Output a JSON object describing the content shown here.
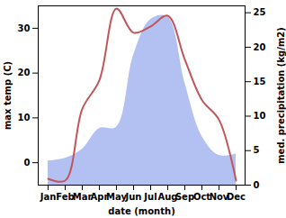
{
  "chart_data": {
    "type": "line",
    "xlabel": "date (month)",
    "ylabel": "max temp (C)",
    "y2label": "med. precipitation (kg/m2)",
    "categories": [
      "Jan",
      "Feb",
      "Mar",
      "Apr",
      "May",
      "Jun",
      "Jul",
      "Aug",
      "Sep",
      "Oct",
      "Nov",
      "Dec"
    ],
    "series": [
      {
        "type": "area",
        "axis": "y2",
        "color": "#b3c0f2",
        "values": [
          3.5,
          3.9,
          5.2,
          8.2,
          8.4,
          18.8,
          24.0,
          24.4,
          14.9,
          7.1,
          4.3,
          4.5
        ]
      },
      {
        "type": "line",
        "color": "#c1555a",
        "values": [
          -3.6,
          -4.0,
          12.0,
          18.4,
          34.4,
          29.0,
          30.4,
          32.8,
          23.0,
          14.0,
          9.6,
          -4.0
        ]
      }
    ],
    "ylim": [
      -5,
      35
    ],
    "yticks": [
      0,
      10,
      20,
      30
    ],
    "y2lim": [
      0,
      26
    ],
    "y2ticks": [
      0,
      5,
      10,
      15,
      20,
      25
    ]
  }
}
